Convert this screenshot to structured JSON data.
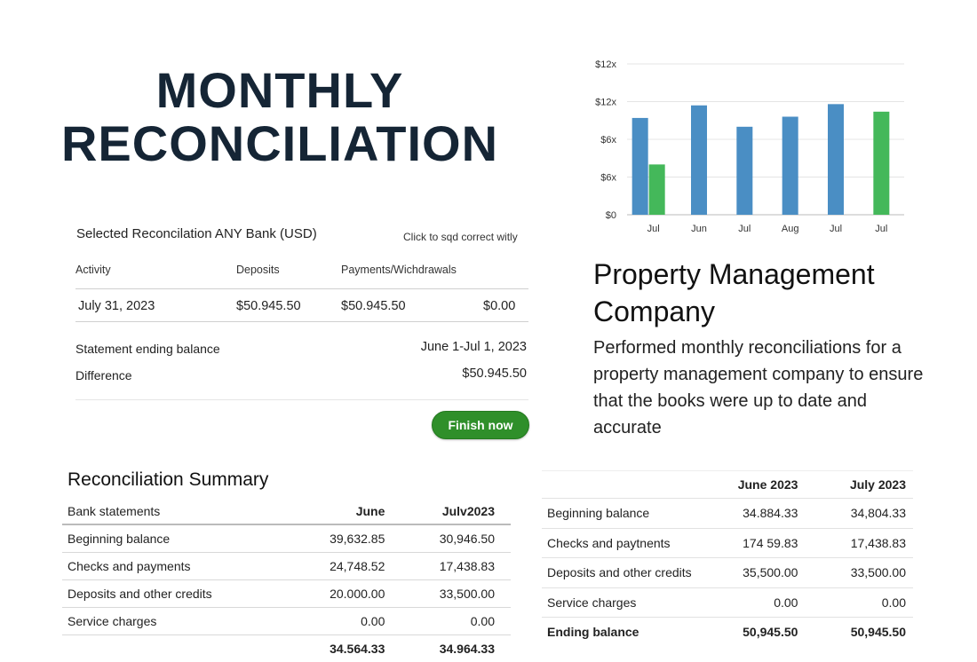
{
  "hero": {
    "line1": "MONTHLY",
    "line2": "RECONCILIATION"
  },
  "reconciliation": {
    "selected_title": "Selected Reconcilation ANY Bank (USD)",
    "click_hint": "Click to sqd correct witly",
    "columns": {
      "activity": "Activity",
      "deposits": "Deposits",
      "payments": "Payments/Wichdrawals"
    },
    "row": {
      "date": "July 31, 2023",
      "deposits": "$50.945.50",
      "payments": "$50.945.50",
      "other": "$0.00"
    },
    "statement_label": "Statement ending balance",
    "statement_value": "June 1-Jul 1, 2023",
    "difference_label": "Difference",
    "difference_value": "$50.945.50",
    "finish_label": "Finish now"
  },
  "chart_data": {
    "type": "bar",
    "categories": [
      "Jul",
      "Jun",
      "Jul",
      "Aug",
      "Jul",
      "Jul"
    ],
    "y_ticks": [
      "$0",
      "$6x",
      "$6x",
      "$12x",
      "$12x"
    ],
    "series": [
      {
        "values": [
          7.7,
          8.7,
          7.0,
          7.8,
          8.8,
          null
        ]
      },
      {
        "values": [
          4.0,
          null,
          null,
          null,
          null,
          8.2
        ]
      }
    ],
    "ylim": [
      0,
      12
    ],
    "grid": true,
    "colors": {
      "blue": "#4a8ec4",
      "green": "#44b85a"
    }
  },
  "company": {
    "title": "Property Management Company",
    "description": "Performed monthly reconciliations for a property management company to ensure that the books were up to date and accurate"
  },
  "summary": {
    "title": "Reconciliation Summary",
    "headers": [
      "Bank statements",
      "June",
      "Julv2023"
    ],
    "rows": [
      [
        "Beginning balance",
        "39,632.85",
        "30,946.50"
      ],
      [
        "Checks and payments",
        "24,748.52",
        "17,438.83"
      ],
      [
        "Deposits and other credits",
        "20.000.00",
        "33,500.00"
      ],
      [
        "Service charges",
        "0.00",
        "0.00"
      ]
    ],
    "totals": [
      "",
      "34.564.33",
      "34.964.33"
    ]
  },
  "comparison": {
    "headers": [
      "",
      "June 2023",
      "July 2023"
    ],
    "rows": [
      [
        "Beginning balance",
        "34.884.33",
        "34,804.33"
      ],
      [
        "Checks and paytnents",
        "174 59.83",
        "17,438.83"
      ],
      [
        "Deposits and other credits",
        "35,500.00",
        "33,500.00"
      ],
      [
        "Service charges",
        "0.00",
        "0.00"
      ]
    ],
    "ending": [
      "Ending balance",
      "50,945.50",
      "50,945.50"
    ]
  }
}
